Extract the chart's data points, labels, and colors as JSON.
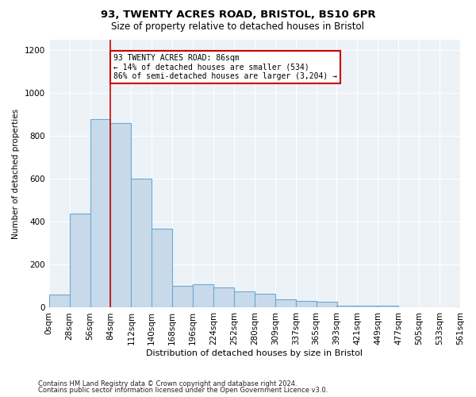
{
  "title1": "93, TWENTY ACRES ROAD, BRISTOL, BS10 6PR",
  "title2": "Size of property relative to detached houses in Bristol",
  "xlabel": "Distribution of detached houses by size in Bristol",
  "ylabel": "Number of detached properties",
  "footer1": "Contains HM Land Registry data © Crown copyright and database right 2024.",
  "footer2": "Contains public sector information licensed under the Open Government Licence v3.0.",
  "annotation_title": "93 TWENTY ACRES ROAD: 86sqm",
  "annotation_line1": "← 14% of detached houses are smaller (534)",
  "annotation_line2": "86% of semi-detached houses are larger (3,204) →",
  "bar_color": "#c8daea",
  "bar_edge_color": "#6aaad4",
  "vline_color": "#cc0000",
  "annotation_box_color": "#cc0000",
  "bins": [
    "0sqm",
    "28sqm",
    "56sqm",
    "84sqm",
    "112sqm",
    "140sqm",
    "168sqm",
    "196sqm",
    "224sqm",
    "252sqm",
    "280sqm",
    "309sqm",
    "337sqm",
    "365sqm",
    "393sqm",
    "421sqm",
    "449sqm",
    "477sqm",
    "505sqm",
    "533sqm",
    "561sqm"
  ],
  "values": [
    60,
    440,
    880,
    860,
    600,
    370,
    100,
    110,
    95,
    75,
    65,
    40,
    30,
    28,
    8,
    8,
    8,
    2,
    2,
    2
  ],
  "vline_x": 84,
  "bin_width": 28,
  "ylim": [
    0,
    1250
  ],
  "yticks": [
    0,
    200,
    400,
    600,
    800,
    1000,
    1200
  ],
  "background_color": "#edf2f7"
}
